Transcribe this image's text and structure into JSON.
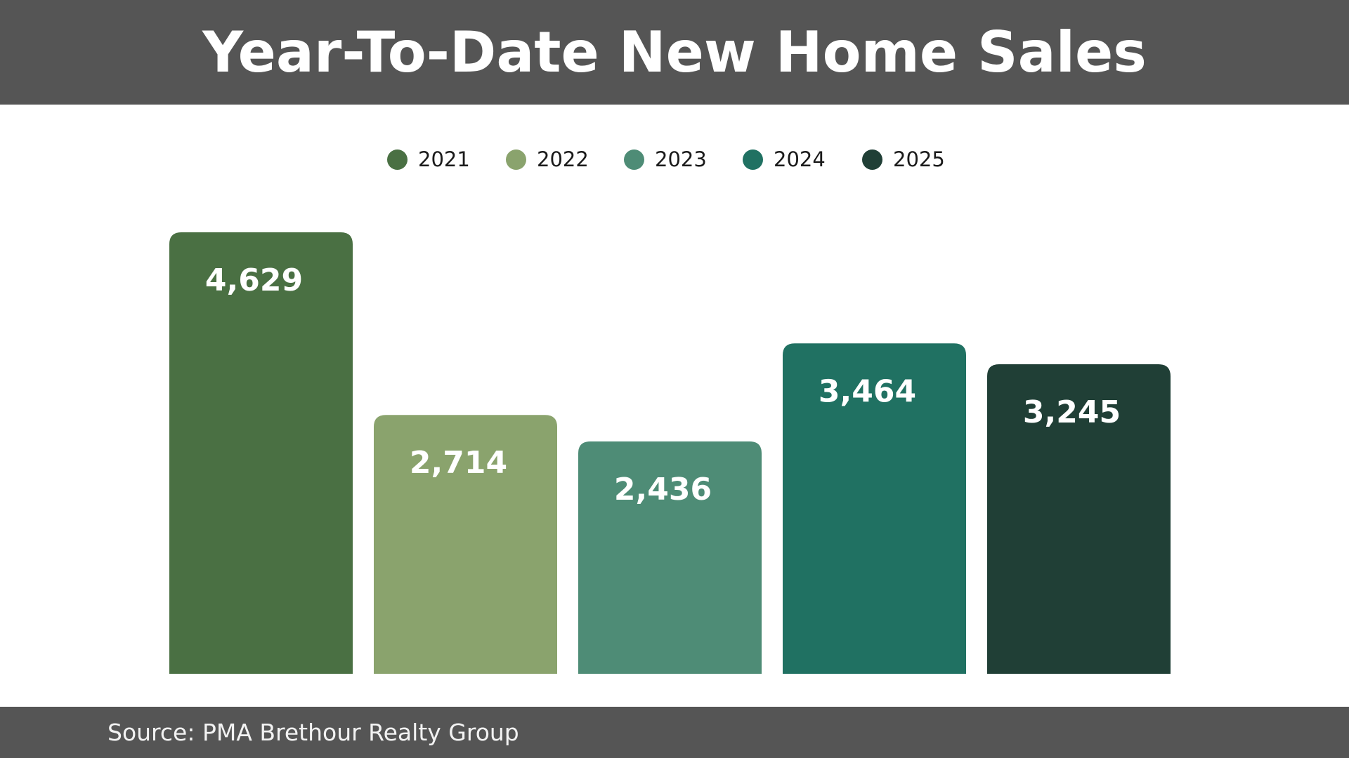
{
  "header": {
    "title": "Year-To-Date New Home Sales"
  },
  "footer": {
    "source": "Source: PMA Brethour Realty Group"
  },
  "chart_data": {
    "type": "bar",
    "title": "Year-To-Date New Home Sales",
    "xlabel": "",
    "ylabel": "",
    "categories": [
      "2021",
      "2022",
      "2023",
      "2024",
      "2025"
    ],
    "values": [
      4629,
      2714,
      2436,
      3464,
      3245
    ],
    "value_labels": [
      "4,629",
      "2,714",
      "2,436",
      "3,464",
      "3,245"
    ],
    "colors": [
      "#4a7043",
      "#8aa36d",
      "#4e8c76",
      "#207162",
      "#203f36"
    ],
    "ylim": [
      0,
      4629
    ],
    "grid": false,
    "axes_visible": false,
    "legend_position": "top-center",
    "legend": [
      {
        "label": "2021",
        "color": "#4a7043"
      },
      {
        "label": "2022",
        "color": "#8aa36d"
      },
      {
        "label": "2023",
        "color": "#4e8c76"
      },
      {
        "label": "2024",
        "color": "#207162"
      },
      {
        "label": "2025",
        "color": "#203f36"
      }
    ]
  }
}
